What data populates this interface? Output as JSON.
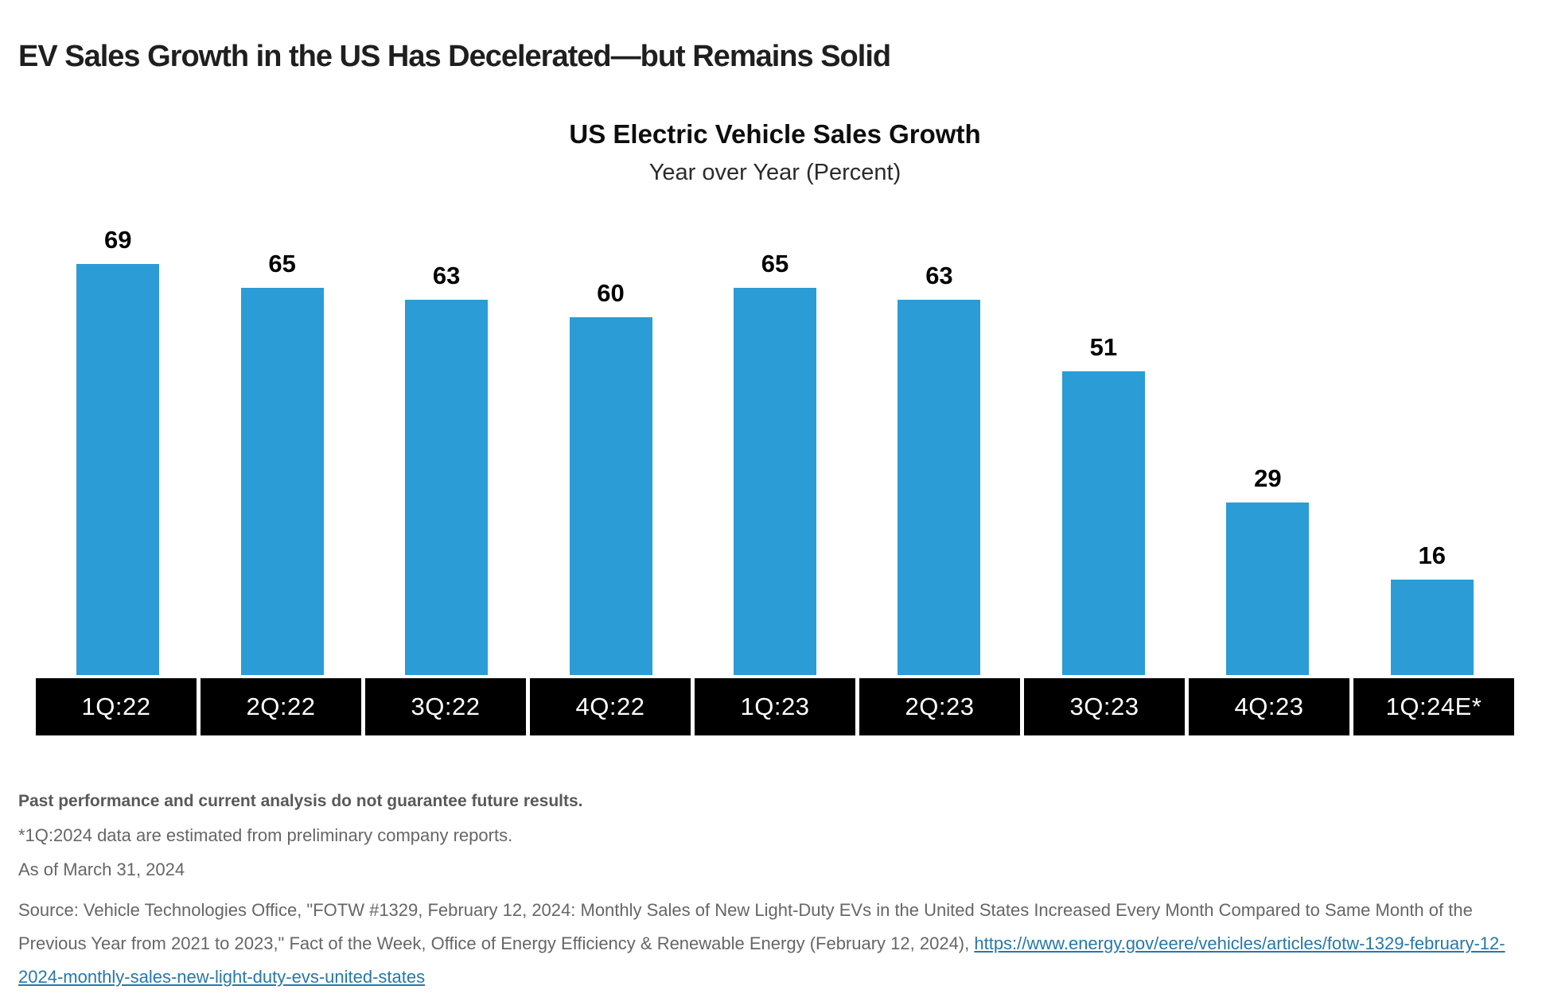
{
  "page_title": "EV Sales Growth in the US Has Decelerated—but Remains Solid",
  "chart_data": {
    "type": "bar",
    "title": "US Electric Vehicle Sales Growth",
    "subtitle": "Year over Year (Percent)",
    "categories": [
      "1Q:22",
      "2Q:22",
      "3Q:22",
      "4Q:22",
      "1Q:23",
      "2Q:23",
      "3Q:23",
      "4Q:23",
      "1Q:24E*"
    ],
    "values": [
      69,
      65,
      63,
      60,
      65,
      63,
      51,
      29,
      16
    ],
    "unit": "percent (year over year growth)",
    "xlabel": "",
    "ylabel": "",
    "ylim": [
      0,
      75
    ],
    "grid": false,
    "legend": false,
    "value_labels_shown": true,
    "bar_color": "#2B9CD5",
    "value_label_color": "#000000",
    "axis_band_color": "#000000",
    "axis_label_color": "#FFFFFF"
  },
  "footnotes": {
    "disclaimer": "Past performance and current analysis do not guarantee future results.",
    "estimate_note": "*1Q:2024 data are estimated from preliminary company reports.",
    "as_of": "As of March 31, 2024"
  },
  "source": {
    "prefix": "Source: Vehicle Technologies Office, \"FOTW #1329, February 12, 2024: Monthly Sales of New Light-Duty EVs in the United States Increased Every Month Compared to Same Month of the Previous Year from 2021 to 2023,\" Fact of the Week, Office of Energy Efficiency & Renewable Energy (February 12, 2024), ",
    "link_text": "https://www.energy.gov/eere/vehicles/articles/fotw-1329-february-12-2024-monthly-sales-new-light-duty-evs-united-states",
    "link_color": "#2878A8"
  },
  "colors": {
    "background": "#FFFFFF",
    "title_color": "#1F1F1F",
    "footnote_bold_color": "#595959",
    "footnote_color": "#666666"
  }
}
